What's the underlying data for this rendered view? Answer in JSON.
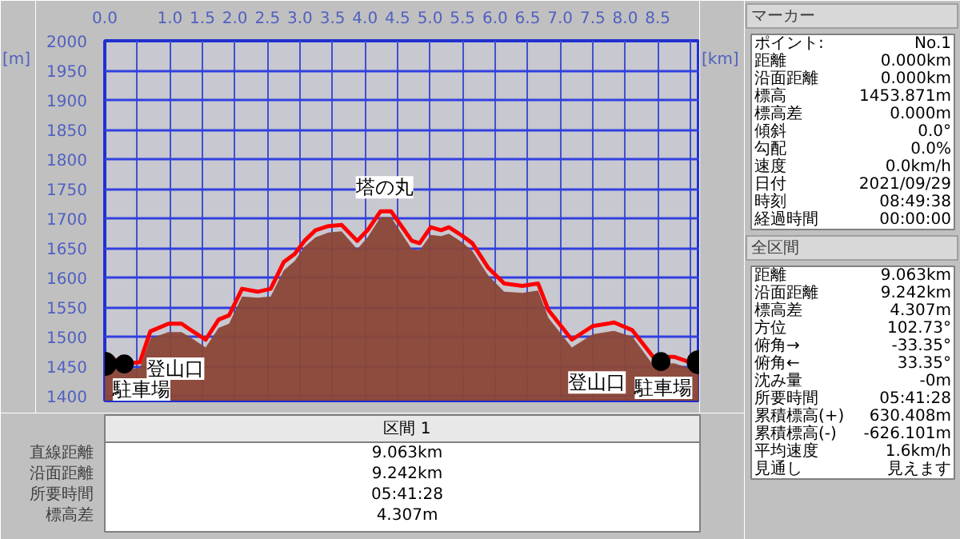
{
  "chart_data": [
    {
      "type": "line",
      "xlabel": "[km]",
      "ylabel": "[m]",
      "xlim": [
        0,
        9.15
      ],
      "ylim": [
        1392,
        2000
      ],
      "xticks": [
        {
          "value": 0,
          "label": "0.0"
        },
        {
          "value": 0.5,
          "label": null
        },
        {
          "value": 1,
          "label": "1.0"
        },
        {
          "value": 1.5,
          "label": "1.5"
        },
        {
          "value": 2,
          "label": "2.0"
        },
        {
          "value": 2.5,
          "label": "2.5"
        },
        {
          "value": 3,
          "label": "3.0"
        },
        {
          "value": 3.5,
          "label": "3.5"
        },
        {
          "value": 4,
          "label": "4.0"
        },
        {
          "value": 4.5,
          "label": "4.5"
        },
        {
          "value": 5,
          "label": "5.0"
        },
        {
          "value": 5.5,
          "label": "5.5"
        },
        {
          "value": 6,
          "label": "6.0"
        },
        {
          "value": 6.5,
          "label": "6.5"
        },
        {
          "value": 7,
          "label": "7.0"
        },
        {
          "value": 7.5,
          "label": "7.5"
        },
        {
          "value": 8,
          "label": "8.0"
        },
        {
          "value": 8.5,
          "label": "8.5"
        },
        {
          "value": 9,
          "label": null
        }
      ],
      "yticks": [
        1400,
        1450,
        1500,
        1550,
        1600,
        1650,
        1700,
        1750,
        1800,
        1850,
        1900,
        1950,
        2000
      ],
      "grid": true,
      "series": [
        {
          "type": "area",
          "color": "#8b4636",
          "x": [
            0,
            0.34,
            0.54,
            0.7,
            0.98,
            1.18,
            1.3,
            1.55,
            1.75,
            1.91,
            2.11,
            2.35,
            2.55,
            2.75,
            2.92,
            3.07,
            3.24,
            3.44,
            3.64,
            3.88,
            4.04,
            4.24,
            4.4,
            4.72,
            4.84,
            5.01,
            5.17,
            5.29,
            5.49,
            5.65,
            5.89,
            6.14,
            6.42,
            6.66,
            6.82,
            7.18,
            7.5,
            7.83,
            8.11,
            8.43,
            8.75,
            9.13
          ],
          "values": [
            1466,
            1445,
            1447,
            1497,
            1508,
            1508,
            1500,
            1482,
            1515,
            1522,
            1568,
            1566,
            1568,
            1612,
            1628,
            1652,
            1668,
            1676,
            1678,
            1648,
            1668,
            1702,
            1702,
            1648,
            1646,
            1672,
            1670,
            1674,
            1660,
            1645,
            1604,
            1576,
            1574,
            1578,
            1532,
            1482,
            1504,
            1510,
            1500,
            1452,
            1455,
            1442
          ]
        },
        {
          "type": "line",
          "color": "#ff0000",
          "x": [
            0,
            0.34,
            0.54,
            0.7,
            0.98,
            1.18,
            1.3,
            1.55,
            1.75,
            1.91,
            2.11,
            2.35,
            2.55,
            2.75,
            2.92,
            3.07,
            3.24,
            3.44,
            3.64,
            3.88,
            4.04,
            4.24,
            4.4,
            4.72,
            4.84,
            5.01,
            5.17,
            5.29,
            5.49,
            5.65,
            5.89,
            6.14,
            6.42,
            6.66,
            6.82,
            7.18,
            7.5,
            7.83,
            8.11,
            8.43,
            8.75,
            9.13
          ],
          "values": [
            1466,
            1455,
            1457,
            1509,
            1522,
            1522,
            1513,
            1495,
            1529,
            1536,
            1581,
            1576,
            1581,
            1626,
            1640,
            1662,
            1680,
            1687,
            1689,
            1662,
            1680,
            1712,
            1712,
            1662,
            1658,
            1685,
            1680,
            1685,
            1671,
            1658,
            1617,
            1590,
            1586,
            1590,
            1545,
            1495,
            1518,
            1524,
            1511,
            1466,
            1466,
            1452
          ]
        },
        {
          "type": "scatter",
          "color": "#000000",
          "marker": "circle",
          "x": [
            0,
            0.3,
            8.55,
            9.13
          ],
          "values": [
            1454,
            1454,
            1458,
            1457
          ],
          "sizes": [
            1,
            0.6,
            0.6,
            1
          ]
        }
      ],
      "annotations": [
        {
          "text": "塔の丸",
          "x": 4.3,
          "y": 1712
        },
        {
          "text": "駐車場",
          "x": 0,
          "y": 1454
        },
        {
          "text": "登山口",
          "x": 0.3,
          "y": 1454
        },
        {
          "text": "登山口",
          "x": 8.55,
          "y": 1458
        },
        {
          "text": "駐車場",
          "x": 9.13,
          "y": 1457
        }
      ]
    },
    {
      "type": "other",
      "title": "区間 1",
      "annotations": [
        "直線距離",
        "9.063km",
        "沿面距離",
        "9.242km",
        "所要時間",
        "05:41:28",
        "標高差",
        "4.307m"
      ]
    },
    {
      "type": "other",
      "title": "マーカー",
      "annotations": [
        "ポイント:",
        "No.1",
        "距離",
        "0.000km",
        "沿面距離",
        "0.000km",
        "標高",
        "1453.871m",
        "標高差",
        "0.000m",
        "傾斜",
        "0.0°",
        "勾配",
        "0.0%",
        "速度",
        "0.0km/h",
        "日付",
        "2021/09/29",
        "時刻",
        "08:49:38",
        "経過時間",
        "00:00:00"
      ]
    },
    {
      "type": "other",
      "title": "全区間",
      "annotations": [
        "距離",
        "9.063km",
        "沿面距離",
        "9.242km",
        "標高差",
        "4.307m",
        "方位",
        "102.73°",
        "俯角→",
        "-33.35°",
        "俯角←",
        "33.35°",
        "沈み量",
        "-0m",
        "所要時間",
        "05:41:28",
        "累積標高(+)",
        "630.408m",
        "累積標高(-)",
        "-626.101m",
        "平均速度",
        "1.6km/h",
        "見通し",
        "見えます"
      ]
    }
  ]
}
